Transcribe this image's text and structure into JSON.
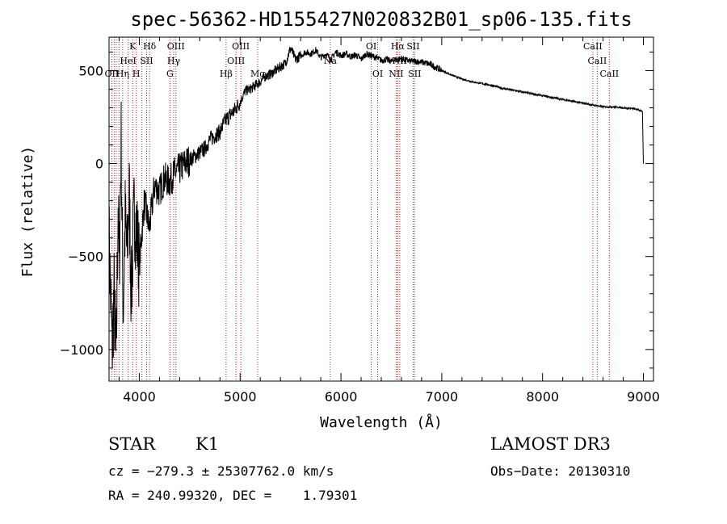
{
  "chart_data": {
    "type": "line",
    "title": "spec-56362-HD155427N020832B01_sp06-135.fits",
    "xlabel": "Wavelength (Å)",
    "ylabel": "Flux (relative)",
    "xlim": [
      3700,
      9100
    ],
    "ylim": [
      -1170,
      680
    ],
    "xticks": [
      4000,
      5000,
      6000,
      7000,
      8000,
      9000
    ],
    "xtick_labels": [
      "4000",
      "5000",
      "6000",
      "7000",
      "8000",
      "9000"
    ],
    "yticks": [
      -1000,
      -500,
      0,
      500
    ],
    "ytick_labels": [
      "−1000",
      "−500",
      "0",
      "500"
    ],
    "series": [
      {
        "name": "flux",
        "x": [
          3700,
          3730,
          3750,
          3770,
          3790,
          3800,
          3820,
          3840,
          3860,
          3880,
          3900,
          3920,
          3950,
          3980,
          4000,
          4050,
          4100,
          4150,
          4200,
          4250,
          4300,
          4350,
          4400,
          4450,
          4500,
          4550,
          4600,
          4650,
          4700,
          4750,
          4800,
          4850,
          4900,
          4950,
          5000,
          5050,
          5100,
          5150,
          5200,
          5250,
          5300,
          5350,
          5400,
          5450,
          5500,
          5550,
          5600,
          5650,
          5700,
          5750,
          5800,
          5850,
          5900,
          5950,
          6000,
          6050,
          6100,
          6150,
          6200,
          6250,
          6300,
          6350,
          6400,
          6450,
          6500,
          6550,
          6600,
          6650,
          6700,
          6750,
          6800,
          6850,
          6900,
          6950,
          7000,
          7100,
          7200,
          7300,
          7400,
          7500,
          7600,
          7700,
          7800,
          7900,
          8000,
          8100,
          8200,
          8300,
          8400,
          8500,
          8600,
          8700,
          8800,
          8900,
          8950,
          8990,
          9000
        ],
        "y": [
          -400,
          -1000,
          -700,
          -1100,
          -200,
          -600,
          120,
          -800,
          -300,
          -500,
          -150,
          -700,
          -250,
          -400,
          -550,
          -200,
          -350,
          -120,
          -150,
          -80,
          -100,
          -50,
          -30,
          0,
          20,
          40,
          60,
          80,
          130,
          150,
          170,
          230,
          260,
          290,
          330,
          390,
          400,
          420,
          440,
          470,
          480,
          500,
          520,
          540,
          620,
          560,
          580,
          600,
          590,
          610,
          570,
          590,
          560,
          600,
          580,
          590,
          575,
          585,
          560,
          590,
          580,
          570,
          555,
          560,
          550,
          560,
          565,
          555,
          550,
          550,
          545,
          540,
          530,
          515,
          500,
          475,
          455,
          440,
          430,
          420,
          405,
          395,
          385,
          375,
          365,
          355,
          345,
          335,
          325,
          315,
          305,
          305,
          300,
          295,
          290,
          280,
          0
        ]
      }
    ],
    "spectral_lines": [
      {
        "x": 3727,
        "label": "OII",
        "row": 2
      },
      {
        "x": 3751,
        "label": "",
        "row": 2
      },
      {
        "x": 3771,
        "label": "",
        "row": 2
      },
      {
        "x": 3798,
        "label": "",
        "row": 2
      },
      {
        "x": 3835,
        "label": "Hη",
        "row": 2
      },
      {
        "x": 3889,
        "label": "HeI",
        "row": 1
      },
      {
        "x": 3934,
        "label": "K",
        "row": 0
      },
      {
        "x": 3970,
        "label": "H",
        "row": 2
      },
      {
        "x": 4026,
        "label": "",
        "row": 1
      },
      {
        "x": 4072,
        "label": "SII",
        "row": 1
      },
      {
        "x": 4102,
        "label": "Hδ",
        "row": 0
      },
      {
        "x": 4304,
        "label": "G",
        "row": 2
      },
      {
        "x": 4341,
        "label": "Hγ",
        "row": 1
      },
      {
        "x": 4363,
        "label": "OIII",
        "row": 0
      },
      {
        "x": 4861,
        "label": "Hβ",
        "row": 2
      },
      {
        "x": 4959,
        "label": "OIII",
        "row": 1
      },
      {
        "x": 5007,
        "label": "OIII",
        "row": 0
      },
      {
        "x": 5175,
        "label": "Mg",
        "row": 2
      },
      {
        "x": 5894,
        "label": "Na",
        "row": 1
      },
      {
        "x": 6300,
        "label": "OI",
        "row": 0
      },
      {
        "x": 6364,
        "label": "OI",
        "row": 2
      },
      {
        "x": 6548,
        "label": "NII",
        "row": 2
      },
      {
        "x": 6563,
        "label": "Hα",
        "row": 0
      },
      {
        "x": 6583,
        "label": "NII",
        "row": 1
      },
      {
        "x": 6716,
        "label": "SII",
        "row": 0
      },
      {
        "x": 6731,
        "label": "SII",
        "row": 2
      },
      {
        "x": 8498,
        "label": "CaII",
        "row": 0
      },
      {
        "x": 8542,
        "label": "CaII",
        "row": 1
      },
      {
        "x": 8662,
        "label": "CaII",
        "row": 2
      }
    ],
    "line_color": "#000000",
    "marker_color": "#b22222"
  },
  "info": {
    "class": "STAR",
    "subclass": "K1",
    "survey": "LAMOST DR3",
    "redshift": "cz = −279.3 ± 25307762.0 km/s",
    "obsdate": "Obs−Date: 20130310",
    "coords": "RA = 240.99320, DEC =    1.79301"
  }
}
